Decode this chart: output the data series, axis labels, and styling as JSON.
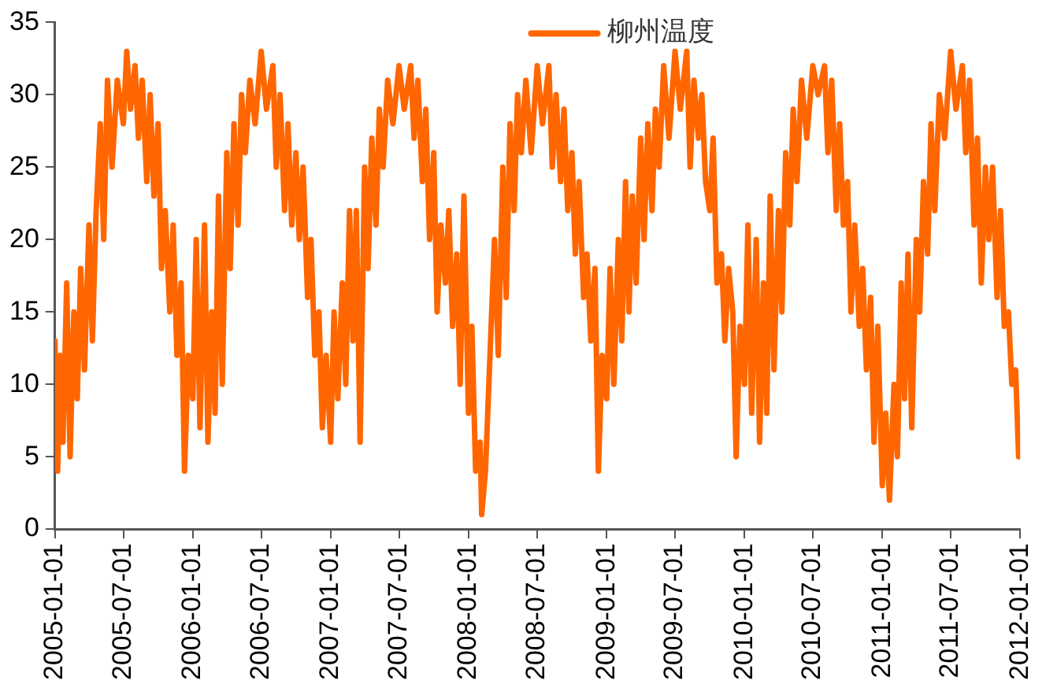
{
  "chart_data": {
    "type": "line",
    "ylim": [
      0,
      35
    ],
    "yticks": [
      0,
      5,
      10,
      15,
      20,
      25,
      30,
      35
    ],
    "xlim": [
      "2005-01-01",
      "2012-01-01"
    ],
    "xticks": [
      "2005-01-01",
      "2005-07-01",
      "2006-01-01",
      "2006-07-01",
      "2007-01-01",
      "2007-07-01",
      "2008-01-01",
      "2008-07-01",
      "2009-01-01",
      "2009-07-01",
      "2010-01-01",
      "2010-07-01",
      "2011-01-01",
      "2011-07-01",
      "2012-01-01"
    ],
    "grid": false,
    "legend": "top",
    "marker": "none",
    "line_style": "solid",
    "series": [
      {
        "name": "柳州温度",
        "color": "#ff6600",
        "x": [
          "2005-01-01",
          "2005-01-08",
          "2005-01-15",
          "2005-01-22",
          "2005-02-01",
          "2005-02-10",
          "2005-02-20",
          "2005-03-01",
          "2005-03-10",
          "2005-03-20",
          "2005-04-01",
          "2005-04-10",
          "2005-04-20",
          "2005-05-01",
          "2005-05-10",
          "2005-05-20",
          "2005-06-01",
          "2005-06-15",
          "2005-07-01",
          "2005-07-10",
          "2005-07-20",
          "2005-08-01",
          "2005-08-10",
          "2005-08-20",
          "2005-09-01",
          "2005-09-10",
          "2005-09-20",
          "2005-10-01",
          "2005-10-10",
          "2005-10-20",
          "2005-11-01",
          "2005-11-10",
          "2005-11-20",
          "2005-12-01",
          "2005-12-10",
          "2005-12-20",
          "2006-01-01",
          "2006-01-10",
          "2006-01-20",
          "2006-02-01",
          "2006-02-10",
          "2006-02-20",
          "2006-03-01",
          "2006-03-10",
          "2006-03-20",
          "2006-04-01",
          "2006-04-10",
          "2006-04-20",
          "2006-05-01",
          "2006-05-10",
          "2006-05-20",
          "2006-06-01",
          "2006-06-15",
          "2006-07-01",
          "2006-07-15",
          "2006-08-01",
          "2006-08-10",
          "2006-08-20",
          "2006-09-01",
          "2006-09-10",
          "2006-09-20",
          "2006-10-01",
          "2006-10-10",
          "2006-10-20",
          "2006-11-01",
          "2006-11-10",
          "2006-11-20",
          "2006-12-01",
          "2006-12-10",
          "2006-12-20",
          "2007-01-01",
          "2007-01-10",
          "2007-01-20",
          "2007-02-01",
          "2007-02-10",
          "2007-02-20",
          "2007-03-01",
          "2007-03-10",
          "2007-03-20",
          "2007-04-01",
          "2007-04-10",
          "2007-04-20",
          "2007-05-01",
          "2007-05-10",
          "2007-05-20",
          "2007-06-01",
          "2007-06-15",
          "2007-07-01",
          "2007-07-15",
          "2007-08-01",
          "2007-08-10",
          "2007-08-20",
          "2007-09-01",
          "2007-09-10",
          "2007-09-20",
          "2007-10-01",
          "2007-10-10",
          "2007-10-20",
          "2007-11-01",
          "2007-11-10",
          "2007-11-20",
          "2007-12-01",
          "2007-12-10",
          "2007-12-20",
          "2008-01-01",
          "2008-01-10",
          "2008-01-20",
          "2008-02-01",
          "2008-02-05",
          "2008-02-15",
          "2008-03-01",
          "2008-03-10",
          "2008-03-20",
          "2008-04-01",
          "2008-04-10",
          "2008-04-20",
          "2008-05-01",
          "2008-05-10",
          "2008-05-20",
          "2008-06-01",
          "2008-06-15",
          "2008-07-01",
          "2008-07-15",
          "2008-08-01",
          "2008-08-10",
          "2008-08-20",
          "2008-09-01",
          "2008-09-10",
          "2008-09-20",
          "2008-10-01",
          "2008-10-10",
          "2008-10-20",
          "2008-11-01",
          "2008-11-10",
          "2008-11-20",
          "2008-12-01",
          "2008-12-10",
          "2008-12-20",
          "2009-01-01",
          "2009-01-10",
          "2009-01-20",
          "2009-02-01",
          "2009-02-10",
          "2009-02-20",
          "2009-03-01",
          "2009-03-10",
          "2009-03-20",
          "2009-04-01",
          "2009-04-10",
          "2009-04-20",
          "2009-05-01",
          "2009-05-10",
          "2009-05-20",
          "2009-06-01",
          "2009-06-15",
          "2009-07-01",
          "2009-07-15",
          "2009-08-01",
          "2009-08-10",
          "2009-08-20",
          "2009-09-01",
          "2009-09-10",
          "2009-09-20",
          "2009-10-01",
          "2009-10-10",
          "2009-10-20",
          "2009-11-01",
          "2009-11-10",
          "2009-11-20",
          "2009-12-01",
          "2009-12-10",
          "2009-12-20",
          "2010-01-01",
          "2010-01-10",
          "2010-01-20",
          "2010-02-01",
          "2010-02-10",
          "2010-02-20",
          "2010-03-01",
          "2010-03-10",
          "2010-03-20",
          "2010-04-01",
          "2010-04-10",
          "2010-04-20",
          "2010-05-01",
          "2010-05-10",
          "2010-05-20",
          "2010-06-01",
          "2010-06-15",
          "2010-07-01",
          "2010-07-15",
          "2010-08-01",
          "2010-08-10",
          "2010-08-20",
          "2010-09-01",
          "2010-09-10",
          "2010-09-20",
          "2010-10-01",
          "2010-10-10",
          "2010-10-20",
          "2010-11-01",
          "2010-11-10",
          "2010-11-20",
          "2010-12-01",
          "2010-12-10",
          "2010-12-20",
          "2011-01-01",
          "2011-01-10",
          "2011-01-20",
          "2011-02-01",
          "2011-02-10",
          "2011-02-20",
          "2011-03-01",
          "2011-03-10",
          "2011-03-20",
          "2011-04-01",
          "2011-04-10",
          "2011-04-20",
          "2011-05-01",
          "2011-05-10",
          "2011-05-20",
          "2011-06-01",
          "2011-06-15",
          "2011-07-01",
          "2011-07-15",
          "2011-08-01",
          "2011-08-10",
          "2011-08-20",
          "2011-09-01",
          "2011-09-10",
          "2011-09-20",
          "2011-10-01",
          "2011-10-10",
          "2011-10-20",
          "2011-11-01",
          "2011-11-10",
          "2011-11-20",
          "2011-12-01",
          "2011-12-10",
          "2011-12-20",
          "2011-12-28"
        ],
        "values": [
          13,
          4,
          12,
          6,
          17,
          5,
          15,
          9,
          18,
          11,
          21,
          13,
          22,
          28,
          20,
          31,
          25,
          31,
          28,
          33,
          29,
          32,
          27,
          31,
          24,
          30,
          23,
          28,
          18,
          22,
          15,
          21,
          12,
          17,
          4,
          12,
          9,
          20,
          7,
          21,
          6,
          15,
          8,
          23,
          10,
          26,
          18,
          28,
          21,
          30,
          26,
          31,
          28,
          33,
          29,
          32,
          25,
          30,
          22,
          28,
          21,
          26,
          20,
          25,
          16,
          20,
          12,
          15,
          7,
          12,
          6,
          15,
          9,
          17,
          10,
          22,
          13,
          22,
          6,
          25,
          18,
          27,
          21,
          29,
          25,
          31,
          28,
          32,
          29,
          32,
          27,
          31,
          24,
          29,
          20,
          26,
          15,
          21,
          17,
          22,
          14,
          19,
          10,
          23,
          8,
          14,
          4,
          6,
          1,
          4,
          14,
          20,
          12,
          25,
          16,
          28,
          22,
          30,
          26,
          31,
          26,
          32,
          28,
          32,
          25,
          30,
          24,
          29,
          22,
          26,
          19,
          24,
          16,
          19,
          13,
          18,
          4,
          12,
          9,
          18,
          10,
          20,
          13,
          24,
          15,
          23,
          17,
          27,
          20,
          28,
          22,
          29,
          25,
          32,
          27,
          33,
          29,
          33,
          25,
          31,
          27,
          30,
          24,
          22,
          27,
          17,
          19,
          13,
          18,
          15,
          5,
          14,
          10,
          21,
          8,
          20,
          6,
          17,
          8,
          23,
          11,
          22,
          15,
          26,
          21,
          29,
          24,
          31,
          27,
          32,
          30,
          32,
          26,
          31,
          22,
          28,
          21,
          24,
          15,
          21,
          14,
          18,
          11,
          16,
          6,
          14,
          3,
          8,
          2,
          10,
          5,
          17,
          9,
          19,
          7,
          20,
          15,
          24,
          19,
          28,
          22,
          30,
          27,
          33,
          29,
          32,
          26,
          31,
          21,
          27,
          17,
          25,
          20,
          25,
          16,
          22,
          14,
          15,
          10,
          11,
          5
        ]
      }
    ]
  }
}
